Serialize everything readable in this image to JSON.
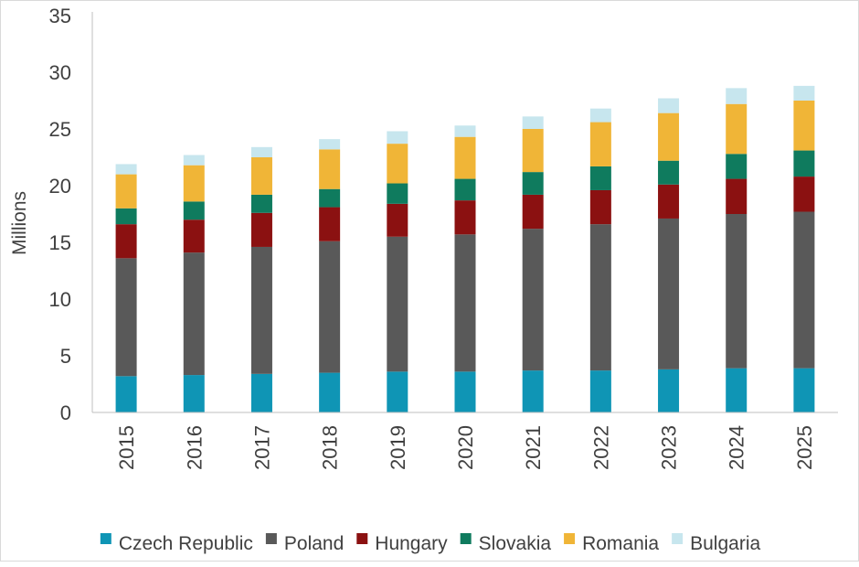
{
  "chart_data": {
    "type": "bar",
    "stacked": true,
    "title": "",
    "xlabel": "",
    "ylabel": "Millions",
    "ylim": [
      0,
      35
    ],
    "yticks": [
      0,
      5,
      10,
      15,
      20,
      25,
      30,
      35
    ],
    "grid": false,
    "legend_position": "bottom",
    "categories": [
      "2015",
      "2016",
      "2017",
      "2018",
      "2019",
      "2020",
      "2021",
      "2022",
      "2023",
      "2024",
      "2025"
    ],
    "series": [
      {
        "name": "Czech Republic",
        "color": "#0f95b5",
        "values": [
          3.2,
          3.3,
          3.4,
          3.5,
          3.6,
          3.6,
          3.7,
          3.7,
          3.8,
          3.9,
          3.9
        ]
      },
      {
        "name": "Poland",
        "color": "#595959",
        "values": [
          10.4,
          10.8,
          11.2,
          11.6,
          11.9,
          12.1,
          12.5,
          12.9,
          13.3,
          13.6,
          13.8
        ]
      },
      {
        "name": "Hungary",
        "color": "#8b1111",
        "values": [
          3.0,
          2.9,
          3.0,
          3.0,
          2.9,
          3.0,
          3.0,
          3.0,
          3.0,
          3.1,
          3.1
        ]
      },
      {
        "name": "Slovakia",
        "color": "#0f7b5e",
        "values": [
          1.4,
          1.6,
          1.6,
          1.6,
          1.8,
          1.9,
          2.0,
          2.1,
          2.1,
          2.2,
          2.3
        ]
      },
      {
        "name": "Romania",
        "color": "#f0b537",
        "values": [
          3.0,
          3.2,
          3.3,
          3.5,
          3.5,
          3.7,
          3.8,
          3.9,
          4.2,
          4.4,
          4.4
        ]
      },
      {
        "name": "Bulgaria",
        "color": "#c7e6ee",
        "values": [
          0.9,
          0.9,
          0.9,
          0.9,
          1.1,
          1.0,
          1.1,
          1.2,
          1.3,
          1.4,
          1.3
        ]
      }
    ]
  }
}
